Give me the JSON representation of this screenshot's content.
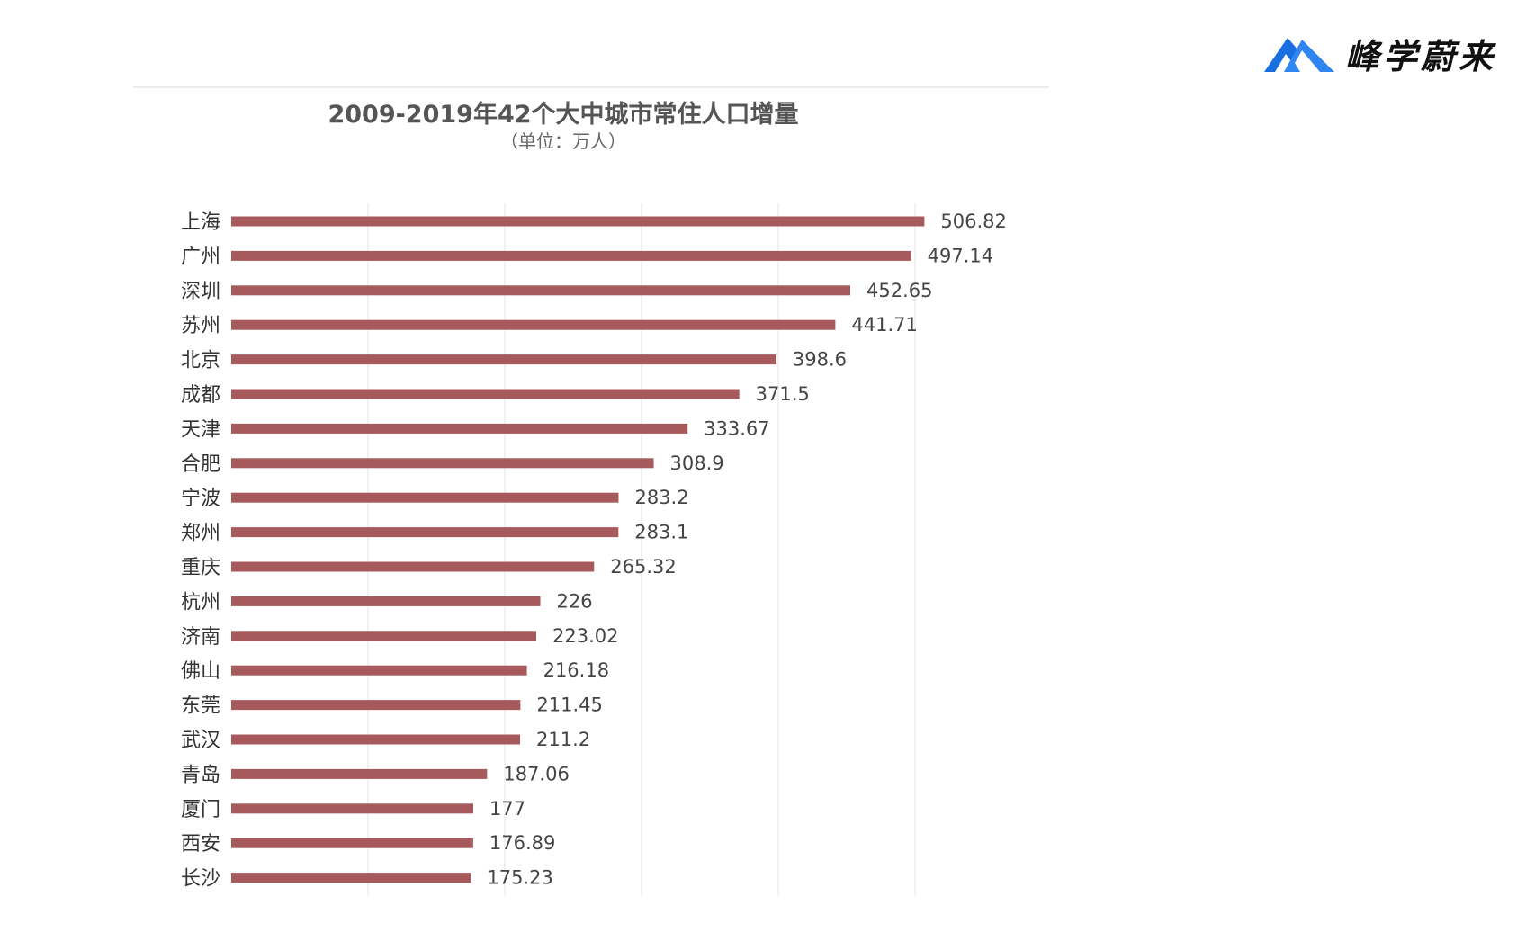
{
  "brand": {
    "name": "峰学蔚来",
    "icon": "mountain-logo-icon",
    "color": "#1a6fe0"
  },
  "chart_data": {
    "type": "bar",
    "orientation": "horizontal",
    "title": "2009-2019年42个大中城市常住人口增量",
    "subtitle": "（单位：万人）",
    "categories": [
      "上海",
      "广州",
      "深圳",
      "苏州",
      "北京",
      "成都",
      "天津",
      "合肥",
      "宁波",
      "郑州",
      "重庆",
      "杭州",
      "济南",
      "佛山",
      "东莞",
      "武汉",
      "青岛",
      "厦门",
      "西安",
      "长沙"
    ],
    "values": [
      506.82,
      497.14,
      452.65,
      441.71,
      398.6,
      371.5,
      333.67,
      308.9,
      283.2,
      283.1,
      265.32,
      226,
      223.02,
      216.18,
      211.45,
      211.2,
      187.06,
      177,
      176.89,
      175.23
    ],
    "value_labels": [
      "506.82",
      "497.14",
      "452.65",
      "441.71",
      "398.6",
      "371.5",
      "333.67",
      "308.9",
      "283.2",
      "283.1",
      "265.32",
      "226",
      "223.02",
      "216.18",
      "211.45",
      "211.2",
      "187.06",
      "177",
      "176.89",
      "175.23"
    ],
    "xlim": [
      0,
      600
    ],
    "grid": true,
    "bar_color": "#a75a5c",
    "data_labels": true
  }
}
